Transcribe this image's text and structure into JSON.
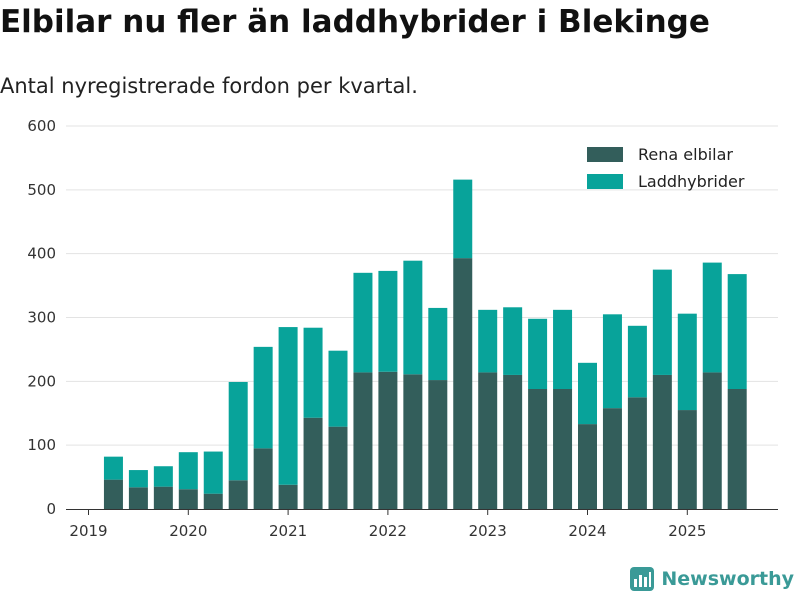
{
  "title": "Elbilar nu fler än laddhybrider i Blekinge",
  "subtitle": "Antal nyregistrerade fordon per kvartal.",
  "brand": "Newsworthy",
  "chart_data": {
    "type": "bar",
    "stacked": true,
    "categories": [
      "2019Q2",
      "2019Q3",
      "2019Q4",
      "2020Q1",
      "2020Q2",
      "2020Q3",
      "2020Q4",
      "2021Q1",
      "2021Q2",
      "2021Q3",
      "2021Q4",
      "2022Q1",
      "2022Q2",
      "2022Q3",
      "2022Q4",
      "2023Q1",
      "2023Q2",
      "2023Q3",
      "2023Q4",
      "2024Q1",
      "2024Q2",
      "2024Q3",
      "2024Q4",
      "2025Q1",
      "2025Q2",
      "2025Q3"
    ],
    "series": [
      {
        "name": "Rena elbilar",
        "color": "#335e5b",
        "values": [
          46,
          34,
          35,
          31,
          24,
          45,
          95,
          38,
          143,
          129,
          214,
          215,
          211,
          202,
          393,
          214,
          210,
          188,
          188,
          133,
          158,
          175,
          210,
          155,
          214,
          188
        ]
      },
      {
        "name": "Laddhybrider",
        "color": "#08a39a",
        "values": [
          36,
          27,
          32,
          58,
          66,
          154,
          159,
          247,
          141,
          119,
          156,
          158,
          178,
          113,
          123,
          98,
          106,
          110,
          124,
          96,
          147,
          112,
          165,
          151,
          172,
          180
        ]
      }
    ],
    "x_tick_labels": [
      "2019",
      "2020",
      "2021",
      "2022",
      "2023",
      "2024",
      "2025"
    ],
    "y_ticks": [
      0,
      100,
      200,
      300,
      400,
      500,
      600
    ],
    "ylim": [
      0,
      600
    ],
    "grid": true,
    "legend_position": "top-right"
  }
}
